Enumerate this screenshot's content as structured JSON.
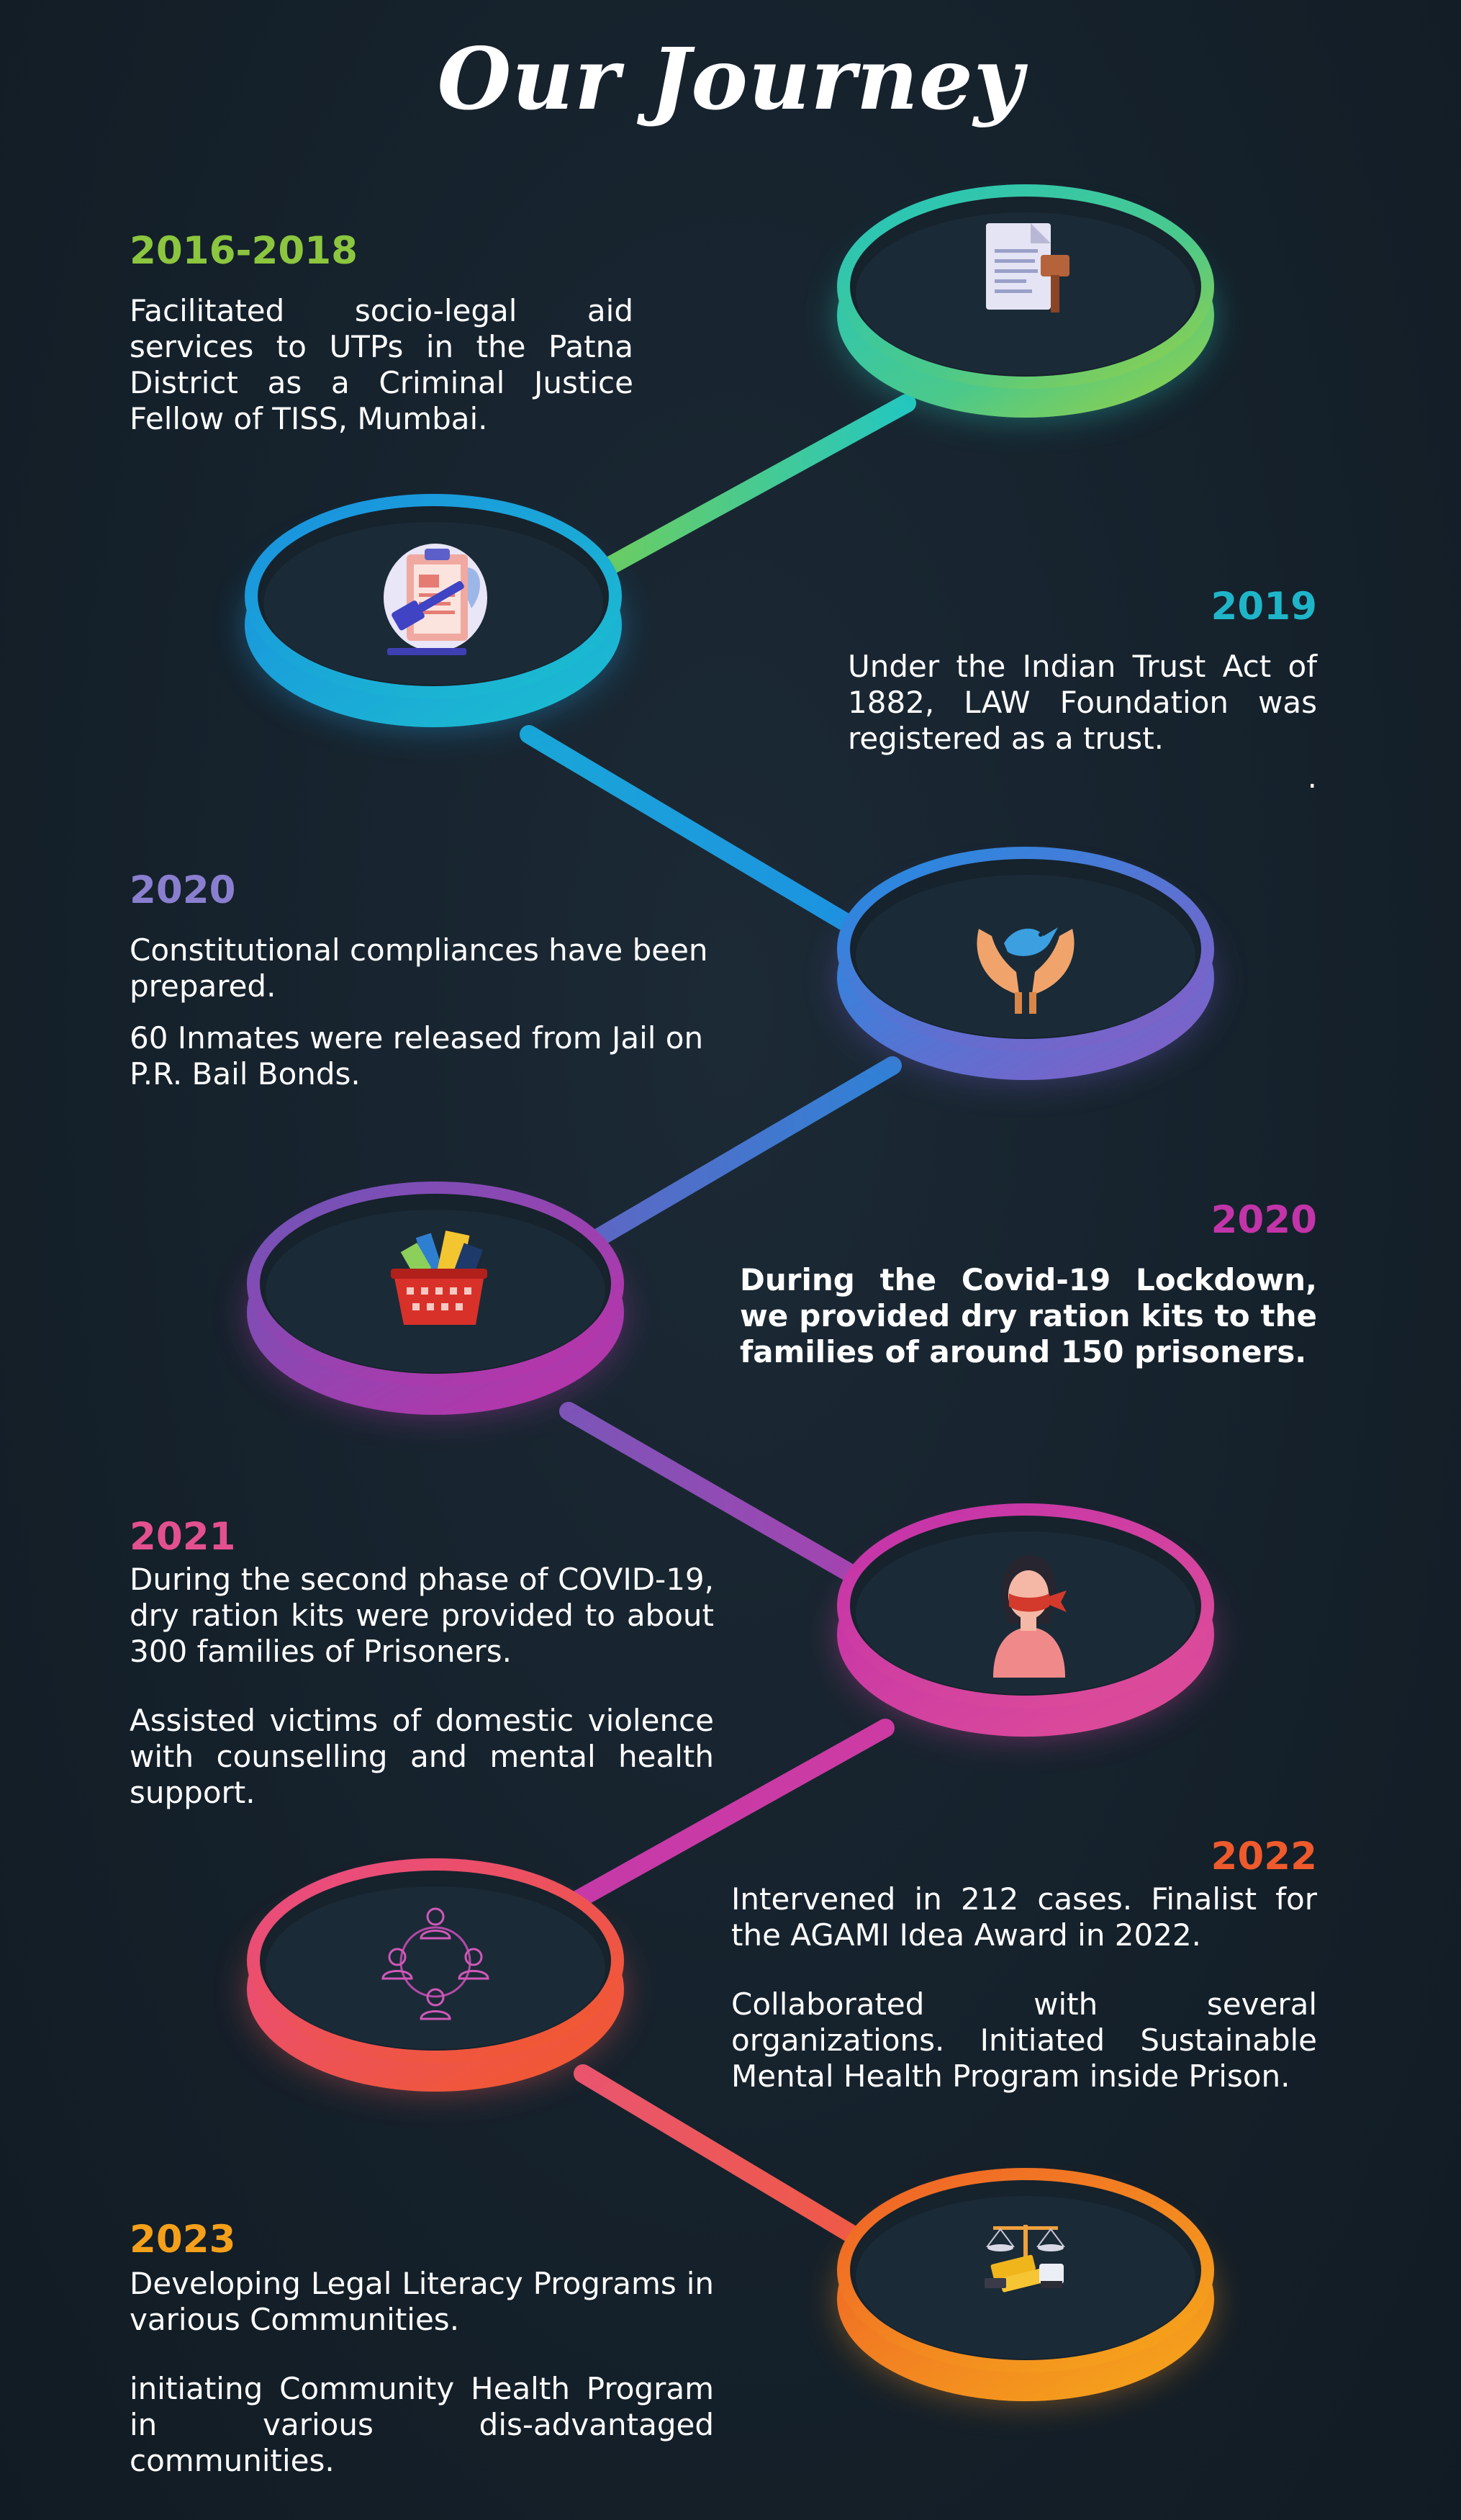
{
  "title": "Our Journey",
  "colors": {
    "background": "#15212b",
    "green": "#8cc63f",
    "teal": "#1fb5c9",
    "blue": "#1b8fd8",
    "indigo": "#3d6fc7",
    "purple": "#8a5ab5",
    "magenta": "#c234a8",
    "pink": "#e3508f",
    "orange": "#ef5a2c",
    "amber": "#f5a01a"
  },
  "milestones": [
    {
      "year": "2016-2018",
      "color": "#8cc63f",
      "icon": "legal-document-gavel-icon",
      "paragraphs": [
        "Facilitated socio-legal aid services to UTPs in the Patna District as a Criminal Justice Fellow of TISS, Mumbai."
      ]
    },
    {
      "year": "2019",
      "color": "#1fb5c9",
      "icon": "clipboard-gavel-icon",
      "paragraphs": [
        "Under the Indian Trust Act of 1882, LAW Foundation was registered as a trust.",
        "."
      ]
    },
    {
      "year": "2020",
      "color": "#8a7fcf",
      "icon": "hands-dove-icon",
      "paragraphs": [
        "Constitutional compliances have been prepared.",
        "60 Inmates were released from Jail on P.R. Bail Bonds."
      ]
    },
    {
      "year": "2020",
      "color": "#c234a8",
      "icon": "ration-basket-icon",
      "paragraphs": [
        "During the Covid-19 Lockdown, we provided dry ration kits to the families of around 150 prisoners."
      ]
    },
    {
      "year": "2021",
      "color": "#e3508f",
      "icon": "woman-silenced-icon",
      "paragraphs": [
        "During the second phase of COVID-19, dry ration kits were provided to about 300 families of Prisoners.",
        "Assisted victims of domestic violence with counselling and mental health support."
      ]
    },
    {
      "year": "2022",
      "color": "#ef5a2c",
      "icon": "community-circle-icon",
      "paragraphs": [
        "Intervened in 212 cases. Finalist for the AGAMI Idea Award in 2022.",
        "Collaborated with several organizations. Initiated Sustainable Mental Health Program inside Prison."
      ]
    },
    {
      "year": "2023",
      "color": "#f5a01a",
      "icon": "justice-scales-books-icon",
      "paragraphs": [
        "Developing Legal Literacy Programs in various Communities.",
        "initiating Community Health Program in various dis-advantaged communities."
      ]
    }
  ]
}
